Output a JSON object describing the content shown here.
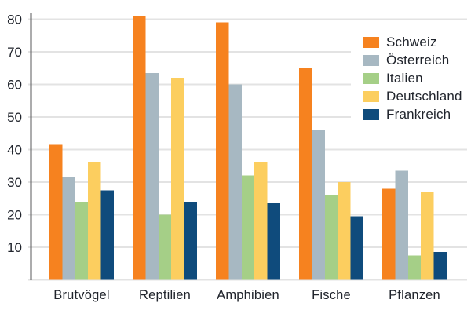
{
  "chart_data": {
    "type": "bar",
    "title": "",
    "xlabel": "",
    "ylabel": "",
    "categories": [
      "Brutvögel",
      "Reptilien",
      "Amphibien",
      "Fische",
      "Pflanzen"
    ],
    "series": [
      {
        "name": "Schweiz",
        "color": "#F6821F",
        "values": [
          41.5,
          81,
          79,
          65,
          28
        ]
      },
      {
        "name": "Österreich",
        "color": "#A7B8C2",
        "values": [
          31.5,
          63.5,
          60,
          46,
          33.5
        ]
      },
      {
        "name": "Italien",
        "color": "#A5CF87",
        "values": [
          24,
          20,
          32,
          26,
          7.5
        ]
      },
      {
        "name": "Deutschland",
        "color": "#FCCE5F",
        "values": [
          36,
          62,
          36,
          30,
          27
        ]
      },
      {
        "name": "Frankreich",
        "color": "#0F4B7C",
        "values": [
          27.5,
          24,
          23.5,
          19.5,
          8.5
        ]
      }
    ],
    "yticks": [
      10,
      20,
      30,
      40,
      50,
      60,
      70,
      80
    ],
    "ylim": [
      0,
      84
    ],
    "grid": true,
    "legend_position": "top-right"
  },
  "style_colors": {
    "axis": "#58595B",
    "gridline": "#E3E3E3",
    "text": "#20242C",
    "background": "#FFFFFF"
  }
}
